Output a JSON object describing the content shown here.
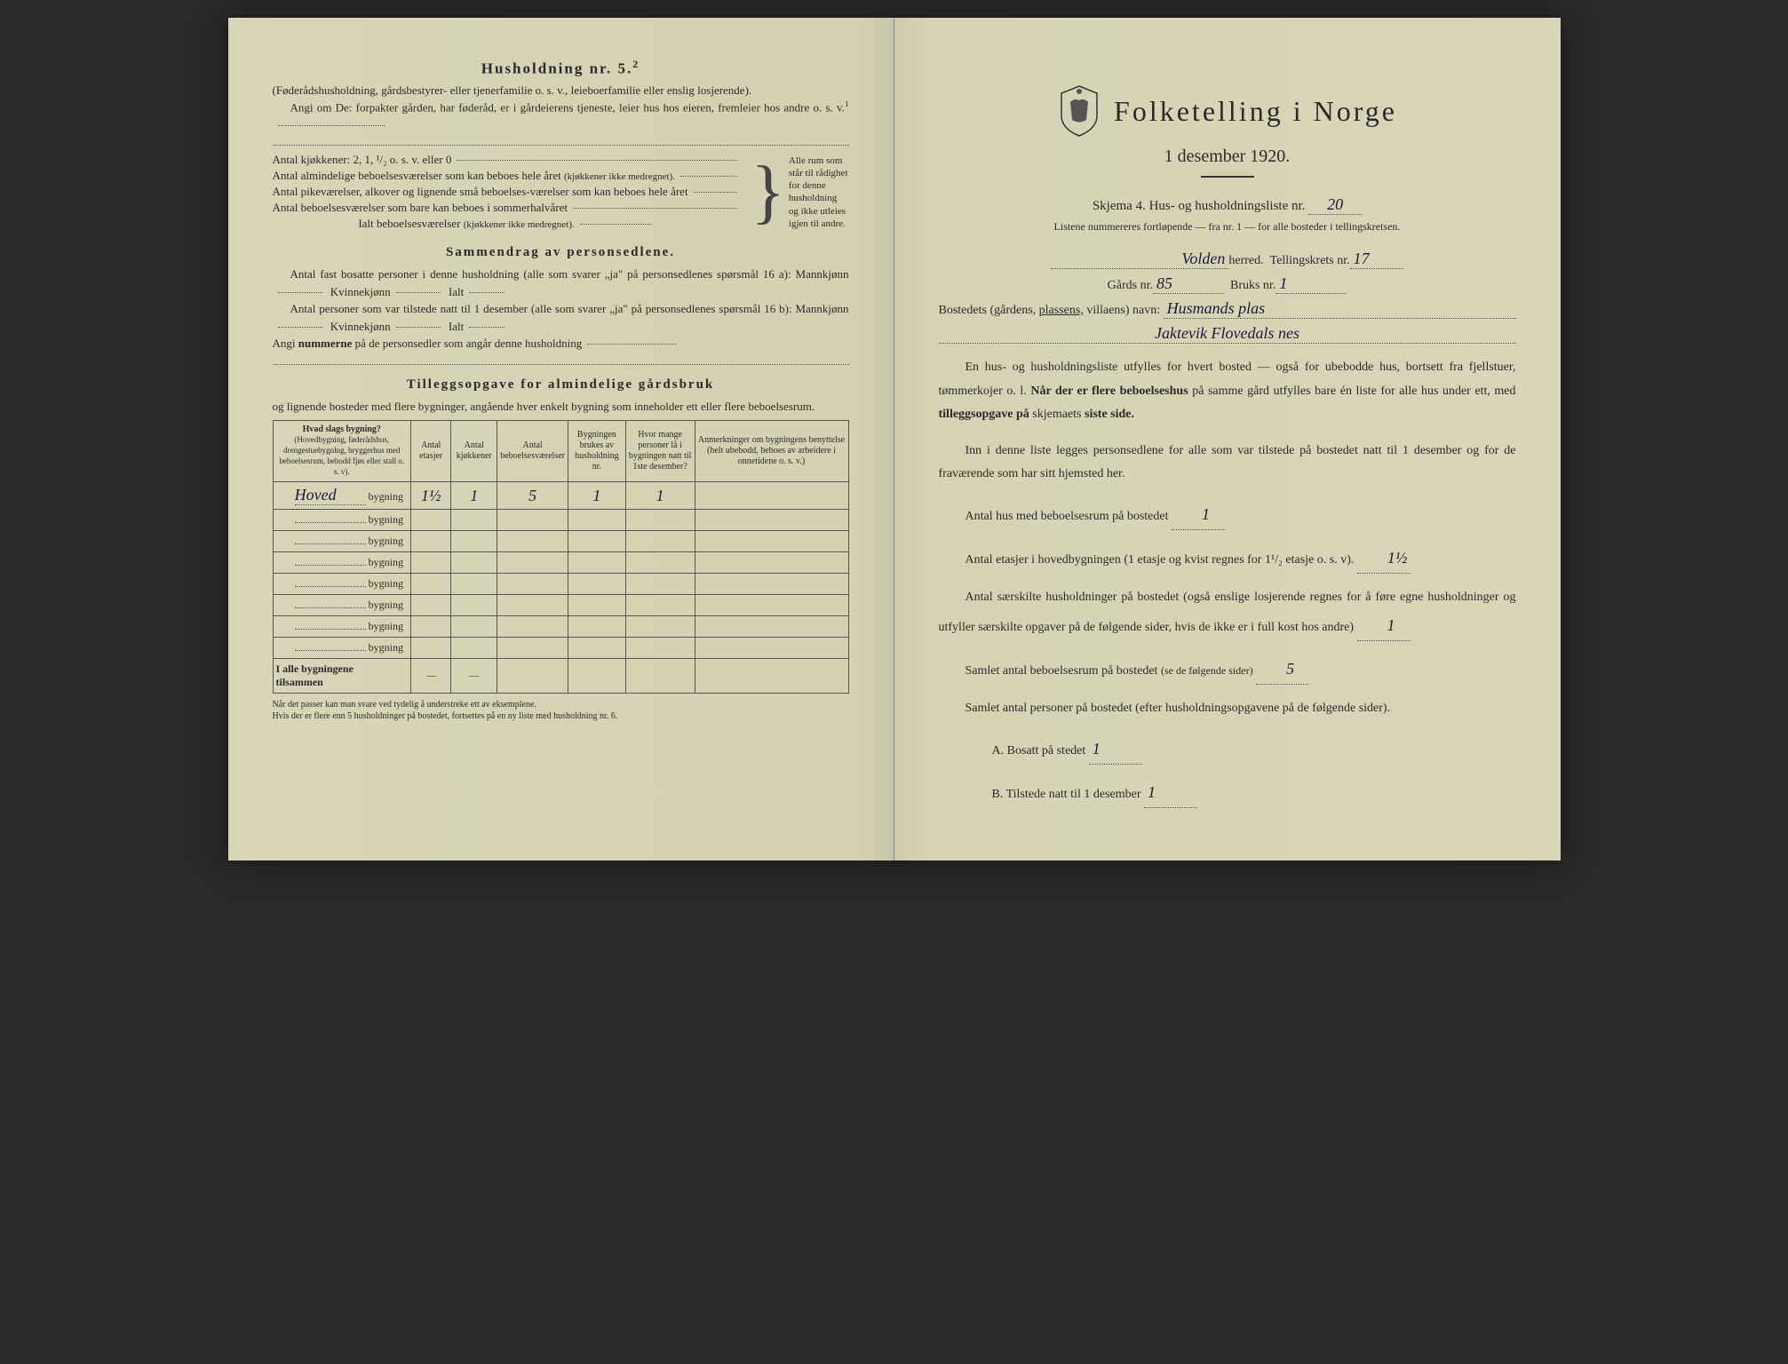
{
  "left": {
    "husholdning_title": "Husholdning nr. 5.",
    "husholdning_sup": "2",
    "paren1": "(Føderådshusholdning, gårdsbestyrer- eller tjenerfamilie o. s. v., leieboerfamilie eller enslig losjerende).",
    "angi_om": "Angi om De: forpakter gården, har føderåd, er i gårdeierens tjeneste, leier hus hos eieren, fremleier hos andre o. s. v.",
    "angi_sup": "1",
    "kjokkener": "Antal kjøkkener: 2, 1, ¹/₂ o. s. v. eller 0",
    "alm_beboelse": "Antal almindelige beboelsesværelser som kan beboes hele året",
    "alm_paren": "(kjøkkener ikke medregnet).",
    "pike": "Antal pikeværelser, alkover og lignende små beboelses-værelser som kan beboes hele året",
    "sommer": "Antal beboelsesværelser som bare kan beboes i sommerhalvåret",
    "ialt": "Ialt beboelsesværelser",
    "ialt_paren": "(kjøkkener ikke medregnet).",
    "brace_text": "Alle rum som står til rådighet for denne husholdning og ikke utleies igjen til andre.",
    "sammendrag_title": "Sammendrag av personsedlene.",
    "fast_bosatte": "Antal fast bosatte personer i denne husholdning (alle som svarer „ja\" på personsedlenes spørsmål 16 a): Mannkjønn",
    "kvinne": "Kvinnekjønn",
    "ialt_label": "Ialt",
    "tilstede": "Antal personer som var tilstede natt til 1 desember (alle som svarer „ja\" på personsedlenes spørsmål 16 b): Mannkjønn",
    "angi_nummerne": "Angi",
    "nummerne_bold": "nummerne",
    "nummerne_rest": "på de personsedler som angår denne husholdning",
    "tillegg_title": "Tilleggsopgave for almindelige gårdsbruk",
    "tillegg_sub": "og lignende bosteder med flere bygninger, angående hver enkelt bygning som inneholder ett eller flere beboelsesrum.",
    "table": {
      "headers": {
        "hvad": "Hvad slags bygning?",
        "hvad_sub": "(Hovedbygning, føderådshus, drengestuebygnlng, bryggerhus med beboelsesrum, bebodd fjøs eller stall o. s. v).",
        "etasjer": "Antal etasjer",
        "kjokkener": "Antal kjøkkener",
        "bebo": "Antal beboelsesværelser",
        "brukes": "Bygningen brukes av husholdning nr.",
        "hvor": "Hvor mange personer lå i bygningen natt til 1ste desember?",
        "anm": "Anmerkninger om bygningens benyttelse (helt ubebodd, beboes av arbeidere i onnetidene o. s. v.)"
      },
      "rows": [
        {
          "label_hand": "Hoved",
          "label": "bygning",
          "v": [
            "1½",
            "1",
            "5",
            "1",
            "1",
            ""
          ]
        },
        {
          "label_hand": "",
          "label": "bygning",
          "v": [
            "",
            "",
            "",
            "",
            "",
            ""
          ]
        },
        {
          "label_hand": "",
          "label": "bygning",
          "v": [
            "",
            "",
            "",
            "",
            "",
            ""
          ]
        },
        {
          "label_hand": "",
          "label": "bygning",
          "v": [
            "",
            "",
            "",
            "",
            "",
            ""
          ]
        },
        {
          "label_hand": "",
          "label": "bygning",
          "v": [
            "",
            "",
            "",
            "",
            "",
            ""
          ]
        },
        {
          "label_hand": "",
          "label": "bygning",
          "v": [
            "",
            "",
            "",
            "",
            "",
            ""
          ]
        },
        {
          "label_hand": "",
          "label": "bygning",
          "v": [
            "",
            "",
            "",
            "",
            "",
            ""
          ]
        },
        {
          "label_hand": "",
          "label": "bygning",
          "v": [
            "",
            "",
            "",
            "",
            "",
            ""
          ]
        }
      ],
      "total_label": "I alle bygningene tilsammen",
      "total_vals": [
        "—",
        "—",
        "",
        "",
        "",
        ""
      ]
    },
    "footnote": "Når det passer kan man svare ved tydelig å understreke ett av eksemplene.\nHvis der er flere enn 5 husholdninger på bostedet, fortsettes på en ny liste med husholdning nr. 6."
  },
  "right": {
    "main_title": "Folketelling i Norge",
    "date": "1 desember 1920.",
    "skjema": "Skjema 4.  Hus- og husholdningsliste nr.",
    "skjema_val": "20",
    "listene": "Listene nummereres fortløpende — fra nr. 1 — for alle bosteder i tellingskretsen.",
    "herred_val": "Volden",
    "herred": "herred.",
    "telling": "Tellingskrets nr.",
    "telling_val": "17",
    "gards": "Gårds nr.",
    "gards_val": "85",
    "bruks": "Bruks nr.",
    "bruks_val": "1",
    "bostedets": "Bostedets (gårdens,",
    "plassens": "plassens,",
    "villaens": "villaens) navn:",
    "navn_val1": "Husmands plas",
    "navn_val2": "Jaktevik    Flovedals nes",
    "en_hus": "En hus- og husholdningsliste utfylles for hvert bosted — også for ubebodde hus, bortsett fra fjellstuer, tømmerkojer o. l.",
    "nar_bold": "Når der er flere beboelseshus",
    "pa_samme": "på samme gård utfylles bare én liste for alle hus under ett, med",
    "tillegg_bold": "tilleggsopgave på",
    "skjemaets": "skjemaets",
    "siste_bold": "siste side.",
    "inn_i": "Inn i denne liste legges personsedlene for alle som var tilstede på bostedet natt til 1 desember og for de fraværende som har sitt hjemsted her.",
    "antal_hus": "Antal hus med beboelsesrum på bostedet",
    "antal_hus_val": "1",
    "antal_etasjer": "Antal etasjer i hovedbygningen (1 etasje og kvist regnes for 1¹/₂ etasje o. s. v).",
    "etasjer_val": "1½",
    "antal_sar": "Antal særskilte husholdninger på bostedet (også enslige losjerende regnes for å føre egne husholdninger og utfyller særskilte opgaver på de følgende sider, hvis de ikke er i full kost hos andre)",
    "sar_val": "1",
    "samlet_antal": "Samlet antal beboelsesrum på bostedet",
    "samlet_paren": "(se de følgende sider)",
    "samlet_val": "5",
    "samlet_personer": "Samlet antal personer på bostedet (efter husholdningsopgavene på de følgende sider).",
    "a_bosatt": "A.  Bosatt på stedet",
    "a_val": "1",
    "b_tilstede": "B.  Tilstede natt til 1 desember",
    "b_val": "1"
  },
  "colors": {
    "paper": "#d8d5b8",
    "ink": "#2a2a2a",
    "hand": "#1a1a3a"
  }
}
